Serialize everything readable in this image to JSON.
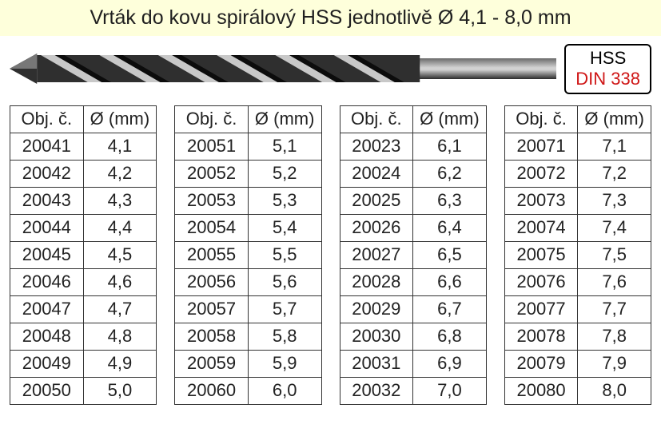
{
  "title": "Vrták do kovu spirálový HSS jednotlivě Ø 4,1 - 8,0 mm",
  "standard": {
    "line1": "HSS",
    "line2": "DIN 338",
    "line1_color": "#000000",
    "line2_color": "#cf1616"
  },
  "headers": {
    "obj": "Obj. č.",
    "dia": "Ø (mm)"
  },
  "drill_svg_colors": {
    "body": "#2f2f2f",
    "highlight": "#bdbdbd",
    "shadow": "#0e0e0e"
  },
  "tables": [
    {
      "rows": [
        [
          "20041",
          "4,1"
        ],
        [
          "20042",
          "4,2"
        ],
        [
          "20043",
          "4,3"
        ],
        [
          "20044",
          "4,4"
        ],
        [
          "20045",
          "4,5"
        ],
        [
          "20046",
          "4,6"
        ],
        [
          "20047",
          "4,7"
        ],
        [
          "20048",
          "4,8"
        ],
        [
          "20049",
          "4,9"
        ],
        [
          "20050",
          "5,0"
        ]
      ]
    },
    {
      "rows": [
        [
          "20051",
          "5,1"
        ],
        [
          "20052",
          "5,2"
        ],
        [
          "20053",
          "5,3"
        ],
        [
          "20054",
          "5,4"
        ],
        [
          "20055",
          "5,5"
        ],
        [
          "20056",
          "5,6"
        ],
        [
          "20057",
          "5,7"
        ],
        [
          "20058",
          "5,8"
        ],
        [
          "20059",
          "5,9"
        ],
        [
          "20060",
          "6,0"
        ]
      ]
    },
    {
      "rows": [
        [
          "20023",
          "6,1"
        ],
        [
          "20024",
          "6,2"
        ],
        [
          "20025",
          "6,3"
        ],
        [
          "20026",
          "6,4"
        ],
        [
          "20027",
          "6,5"
        ],
        [
          "20028",
          "6,6"
        ],
        [
          "20029",
          "6,7"
        ],
        [
          "20030",
          "6,8"
        ],
        [
          "20031",
          "6,9"
        ],
        [
          "20032",
          "7,0"
        ]
      ]
    },
    {
      "rows": [
        [
          "20071",
          "7,1"
        ],
        [
          "20072",
          "7,2"
        ],
        [
          "20073",
          "7,3"
        ],
        [
          "20074",
          "7,4"
        ],
        [
          "20075",
          "7,5"
        ],
        [
          "20076",
          "7,6"
        ],
        [
          "20077",
          "7,7"
        ],
        [
          "20078",
          "7,8"
        ],
        [
          "20079",
          "7,9"
        ],
        [
          "20080",
          "8,0"
        ]
      ]
    }
  ]
}
